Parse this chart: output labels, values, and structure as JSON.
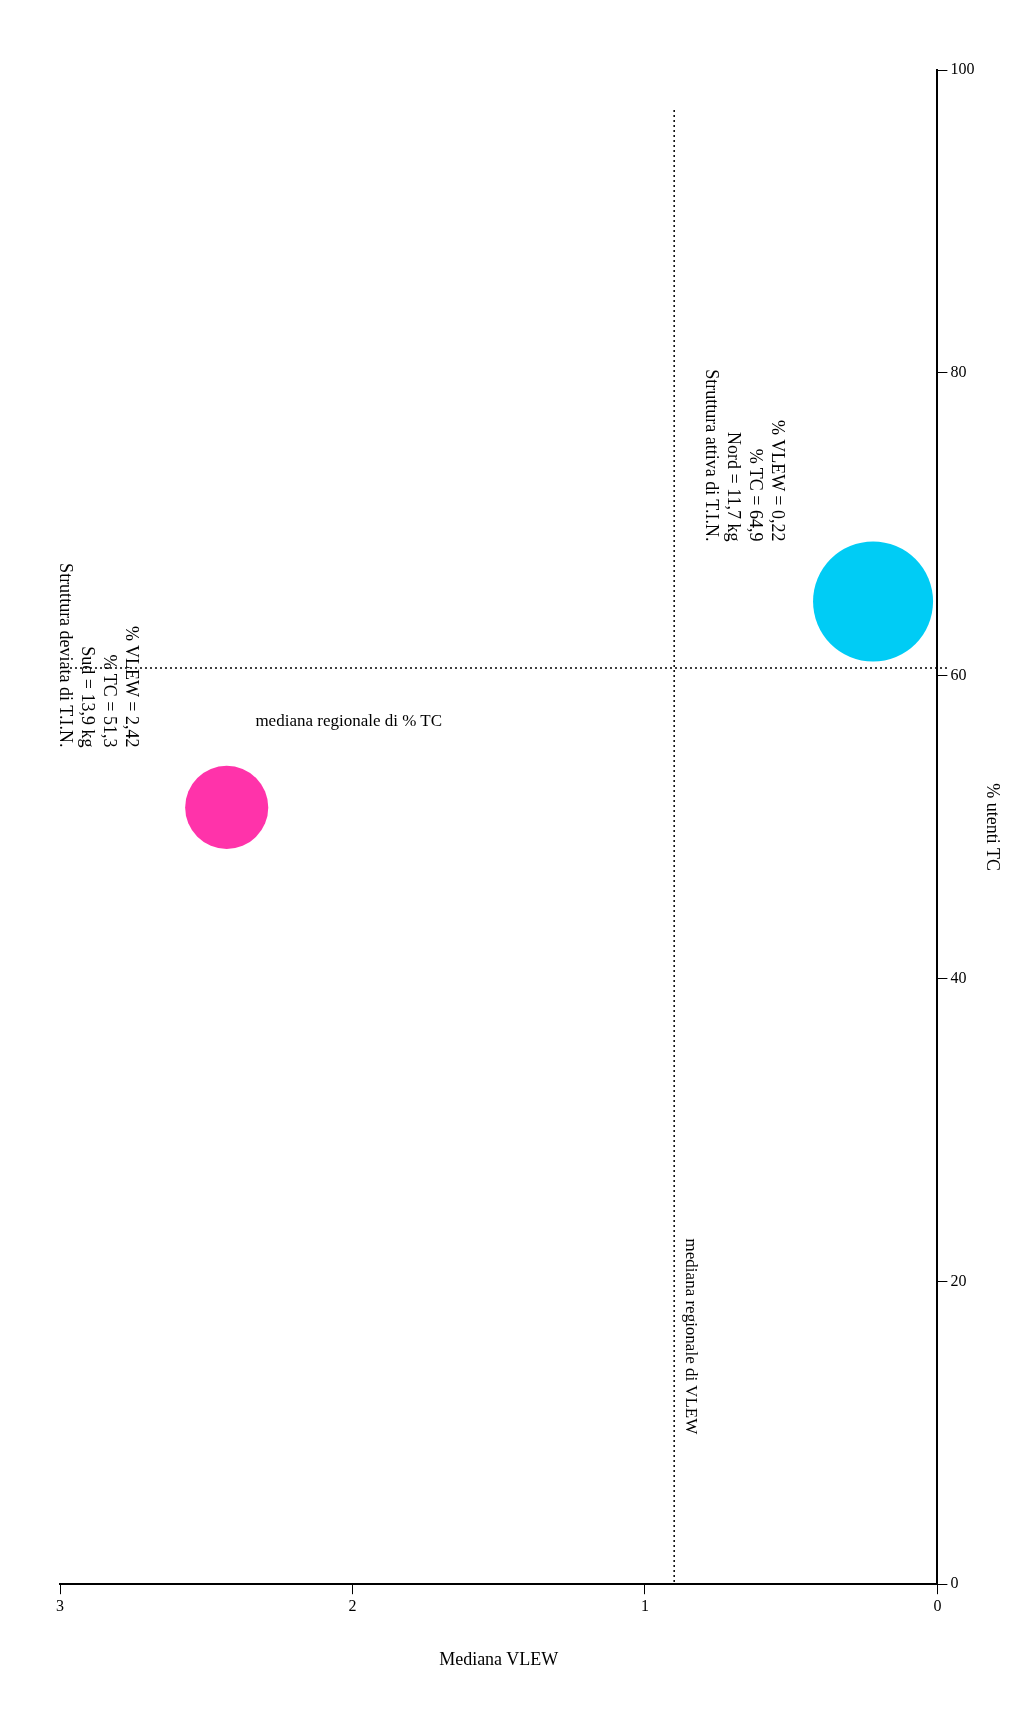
{
  "chart_data": {
    "type": "bubble",
    "xlabel": "Mediana VLEW",
    "ylabel": "% utenti TC",
    "series": [
      {
        "x": [
          2.43,
          0.22
        ],
        "values": [
          51.3,
          64.9
        ],
        "sizes": [
          0.48,
          1
        ],
        "colors": [
          "#ff33aa",
          "#00ccf5"
        ]
      }
    ],
    "xlim": [
      3,
      0
    ],
    "xticks": [
      0,
      1,
      2,
      3
    ],
    "ylim": [
      0,
      100
    ],
    "yticks": [
      0,
      20,
      40,
      60,
      80,
      100
    ],
    "grid": false,
    "legend": false,
    "ref_lines": [
      {
        "axis": "x",
        "value": 0.9,
        "label": "mediana regionale di VLEW",
        "line_style": "dotted"
      },
      {
        "axis": "y",
        "value": 60.5,
        "label": "mediana regionale di % TC",
        "line_style": "dotted"
      }
    ],
    "annotations": [
      "Struttura deviata di T.I.N.\nSud = 13,9 kg\n% TC = 51,3\n% VLEW = 2,42",
      "Struttura attiva di T.I.N.\nNord = 11,7 kg\n% TC = 64,9\n% VLEW = 0,22"
    ]
  }
}
